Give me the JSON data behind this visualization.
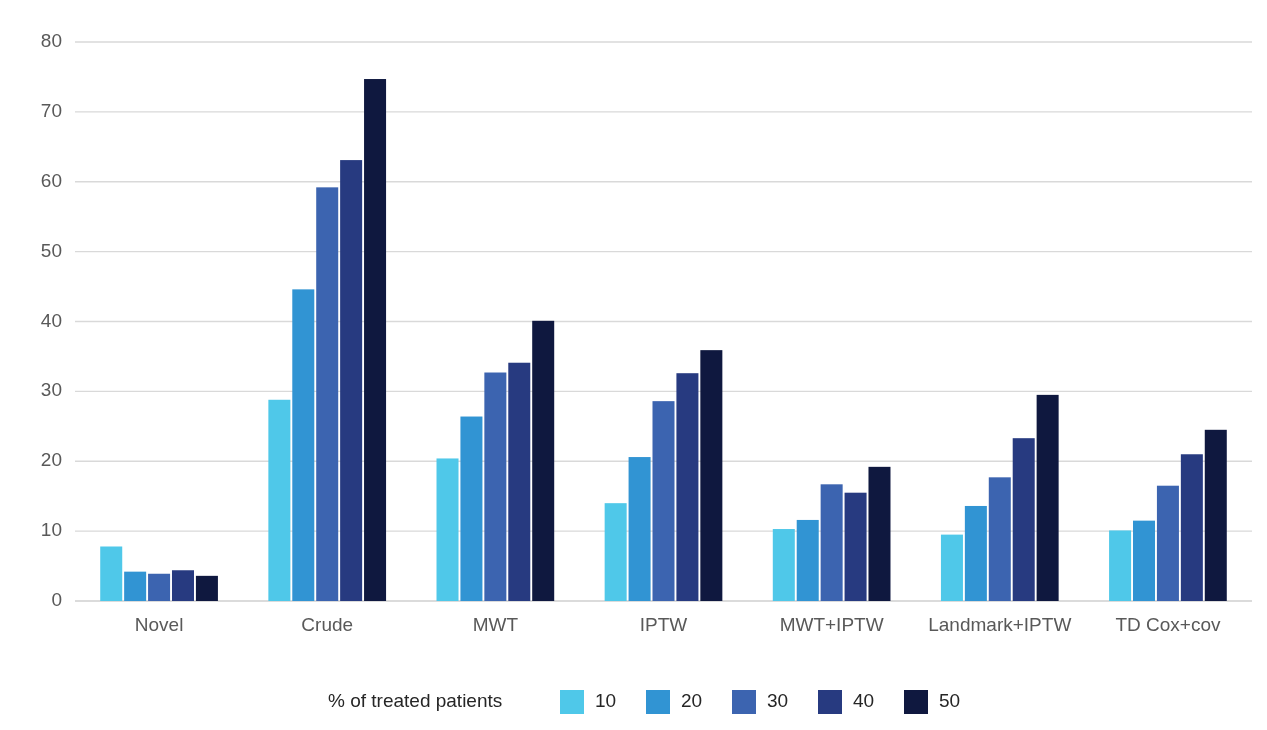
{
  "chart_data": {
    "type": "bar",
    "categories": [
      "Novel",
      "Crude",
      "MWT",
      "IPTW",
      "MWT+IPTW",
      "Landmark+IPTW",
      "TD Cox+cov"
    ],
    "series": [
      {
        "name": "10",
        "color": "#4fc8e9",
        "values": [
          7.8,
          28.8,
          20.4,
          14.0,
          10.3,
          9.5,
          10.1
        ]
      },
      {
        "name": "20",
        "color": "#3194d3",
        "values": [
          4.2,
          44.6,
          26.4,
          20.6,
          11.6,
          13.6,
          11.5
        ]
      },
      {
        "name": "30",
        "color": "#3c64b0",
        "values": [
          3.9,
          59.2,
          32.7,
          28.6,
          16.7,
          17.7,
          16.5
        ]
      },
      {
        "name": "40",
        "color": "#273a80",
        "values": [
          4.4,
          63.1,
          34.1,
          32.6,
          15.5,
          23.3,
          21.0
        ]
      },
      {
        "name": "50",
        "color": "#0f183f",
        "values": [
          3.6,
          74.7,
          40.1,
          35.9,
          19.2,
          29.5,
          24.5
        ]
      }
    ],
    "ylim": [
      0,
      80
    ],
    "yticks": [
      0,
      10,
      20,
      30,
      40,
      50,
      60,
      70,
      80
    ],
    "grid": "y",
    "legend": "bottom",
    "legend_title": "% of treated patients"
  }
}
